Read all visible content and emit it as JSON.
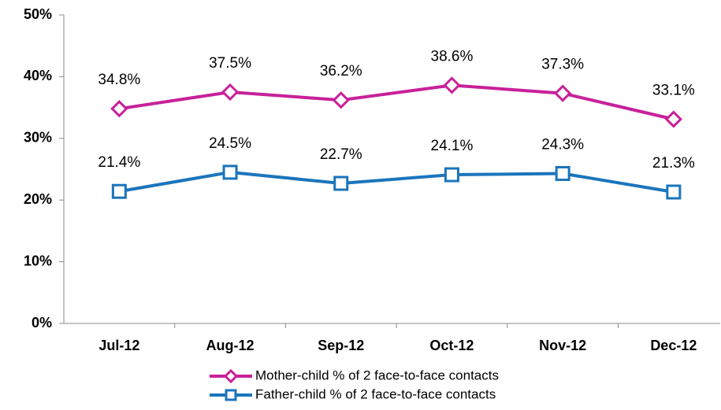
{
  "chart_data": {
    "type": "line",
    "categories": [
      "Jul-12",
      "Aug-12",
      "Sep-12",
      "Oct-12",
      "Nov-12",
      "Dec-12"
    ],
    "series": [
      {
        "name": "Mother-child % of 2 face-to-face contacts",
        "color": "#c8209a",
        "marker": "diamond",
        "values": [
          34.8,
          37.5,
          36.2,
          38.6,
          37.3,
          33.1
        ],
        "value_labels": [
          "34.8%",
          "37.5%",
          "36.2%",
          "38.6%",
          "37.3%",
          "33.1%"
        ]
      },
      {
        "name": "Father-child % of 2 face-to-face contacts",
        "color": "#1b75bc",
        "marker": "square",
        "values": [
          21.4,
          24.5,
          22.7,
          24.1,
          24.3,
          21.3
        ],
        "value_labels": [
          "21.4%",
          "24.5%",
          "22.7%",
          "24.1%",
          "24.3%",
          "21.3%"
        ]
      }
    ],
    "ylim": [
      0,
      50
    ],
    "yticks": [
      {
        "value": 0,
        "label": "0%"
      },
      {
        "value": 10,
        "label": "10%"
      },
      {
        "value": 20,
        "label": "20%"
      },
      {
        "value": 30,
        "label": "30%"
      },
      {
        "value": 40,
        "label": "40%"
      },
      {
        "value": 50,
        "label": "50%"
      }
    ],
    "grid": false,
    "legend": "bottom"
  }
}
